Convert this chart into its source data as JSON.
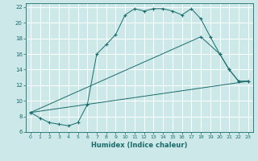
{
  "xlabel": "Humidex (Indice chaleur)",
  "bg_color": "#cce8e8",
  "line_color": "#1a6b6b",
  "grid_color": "#b0d0d0",
  "xlim": [
    -0.5,
    23.5
  ],
  "ylim": [
    6,
    22.5
  ],
  "xticks": [
    0,
    1,
    2,
    3,
    4,
    5,
    6,
    7,
    8,
    9,
    10,
    11,
    12,
    13,
    14,
    15,
    16,
    17,
    18,
    19,
    20,
    21,
    22,
    23
  ],
  "yticks": [
    6,
    8,
    10,
    12,
    14,
    16,
    18,
    20,
    22
  ],
  "line1_x": [
    0,
    1,
    2,
    3,
    4,
    5,
    6,
    7,
    8,
    9,
    10,
    11,
    12,
    13,
    14,
    15,
    16,
    17,
    18,
    19,
    20,
    21,
    22,
    23
  ],
  "line1_y": [
    8.5,
    7.8,
    7.2,
    7.0,
    6.8,
    7.2,
    9.5,
    16.0,
    17.2,
    18.5,
    21.0,
    21.8,
    21.5,
    21.8,
    21.8,
    21.5,
    21.0,
    21.8,
    20.5,
    18.2,
    16.0,
    14.0,
    12.5,
    12.5
  ],
  "line2_x": [
    0,
    18,
    20,
    21,
    22,
    23
  ],
  "line2_y": [
    8.5,
    18.2,
    16.0,
    14.0,
    12.5,
    12.5
  ],
  "line3_x": [
    0,
    23
  ],
  "line3_y": [
    8.5,
    12.5
  ]
}
